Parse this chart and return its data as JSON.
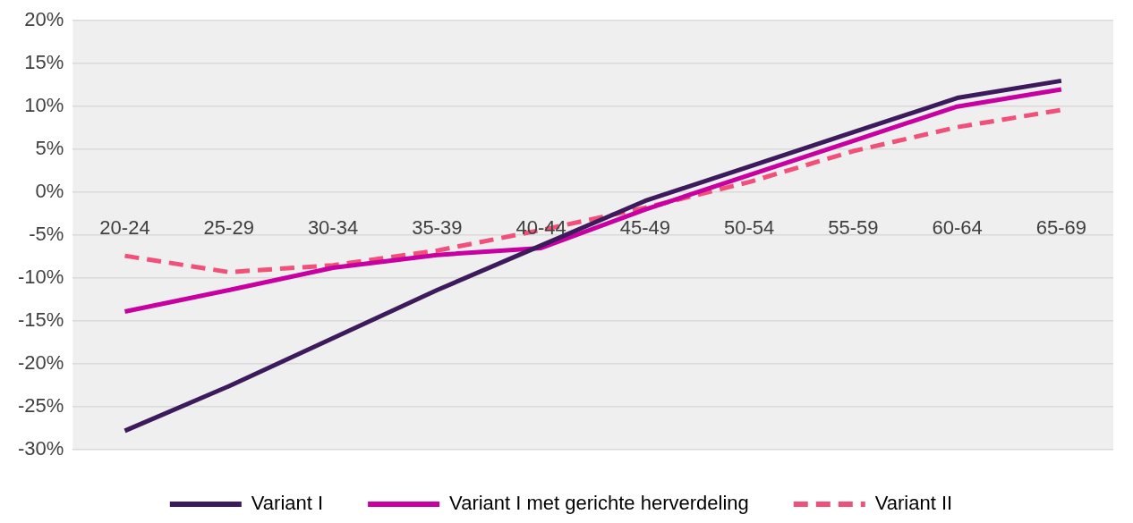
{
  "chart_data": {
    "type": "line",
    "categories": [
      "20-24",
      "25-29",
      "30-34",
      "35-39",
      "40-44",
      "45-49",
      "50-54",
      "55-59",
      "60-64",
      "65-69"
    ],
    "series": [
      {
        "name": "Variant I",
        "color": "#3c1a5b",
        "line_style": "solid",
        "values": [
          -27.8,
          -22.6,
          -17,
          -11.4,
          -6.2,
          -1,
          3,
          7,
          11,
          13
        ]
      },
      {
        "name": "Variant I met gerichte herverdeling",
        "color": "#c800a1",
        "line_style": "solid",
        "values": [
          -13.9,
          -11.4,
          -8.8,
          -7.3,
          -6.5,
          -2,
          2,
          6,
          10,
          12
        ]
      },
      {
        "name": "Variant II",
        "color": "#f0507a",
        "line_style": "dashed",
        "values": [
          -7.4,
          -9.3,
          -8.5,
          -6.8,
          -4.4,
          -1.8,
          1.2,
          4.8,
          7.6,
          9.6
        ]
      }
    ],
    "ylim": [
      -30,
      20
    ],
    "yticks": [
      {
        "value": -30,
        "label": "-30%"
      },
      {
        "value": -25,
        "label": "-25%"
      },
      {
        "value": -20,
        "label": "-20%"
      },
      {
        "value": -15,
        "label": "-15%"
      },
      {
        "value": -10,
        "label": "-10%"
      },
      {
        "value": -5,
        "label": "-5%"
      },
      {
        "value": 0,
        "label": "0%"
      },
      {
        "value": 5,
        "label": "5%"
      },
      {
        "value": 10,
        "label": "10%"
      },
      {
        "value": 15,
        "label": "15%"
      },
      {
        "value": 20,
        "label": "20%"
      }
    ],
    "grid": "y",
    "legend": "bottom",
    "marker": "none"
  }
}
